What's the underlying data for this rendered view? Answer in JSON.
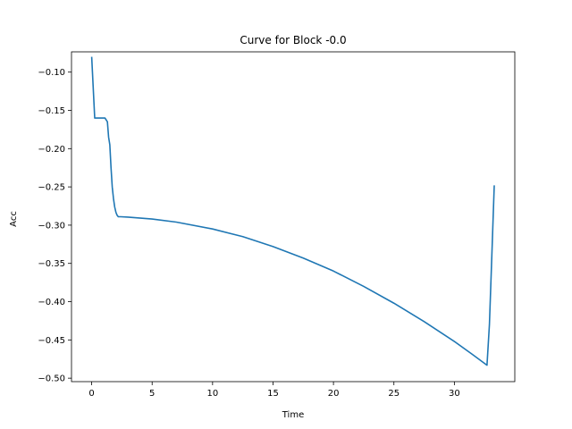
{
  "chart_data": {
    "type": "line",
    "title": "Curve for Block -0.0",
    "xlabel": "Time",
    "ylabel": "Acc",
    "xlim": [
      -1.67,
      35.0
    ],
    "ylim": [
      -0.5045,
      -0.0735
    ],
    "x_ticks": [
      0,
      5,
      10,
      15,
      20,
      25,
      30
    ],
    "y_ticks": [
      -0.1,
      -0.15,
      -0.2,
      -0.25,
      -0.3,
      -0.35,
      -0.4,
      -0.45,
      -0.5
    ],
    "x_tick_labels": [
      "0",
      "5",
      "10",
      "15",
      "20",
      "25",
      "30"
    ],
    "y_tick_labels": [
      "−0.10",
      "−0.15",
      "−0.20",
      "−0.25",
      "−0.30",
      "−0.35",
      "−0.40",
      "−0.45",
      "−0.50"
    ],
    "grid": false,
    "legend": "none",
    "series": [
      {
        "color": "#1f77b4",
        "x": [
          0.0,
          0.25,
          0.5,
          0.8,
          1.1,
          1.3,
          1.4,
          1.5,
          1.6,
          1.7,
          1.8,
          1.9,
          2.0,
          2.1,
          2.2,
          2.4,
          3.0,
          5.0,
          7.0,
          10.0,
          12.5,
          15.0,
          17.5,
          20.0,
          22.5,
          25.0,
          27.5,
          30.0,
          31.5,
          32.7,
          32.9,
          33.1,
          33.3
        ],
        "y": [
          -0.08,
          -0.16,
          -0.16,
          -0.16,
          -0.16,
          -0.165,
          -0.185,
          -0.195,
          -0.225,
          -0.25,
          -0.265,
          -0.276,
          -0.283,
          -0.287,
          -0.289,
          -0.289,
          -0.2895,
          -0.292,
          -0.296,
          -0.305,
          -0.315,
          -0.328,
          -0.343,
          -0.36,
          -0.38,
          -0.402,
          -0.426,
          -0.452,
          -0.469,
          -0.483,
          -0.43,
          -0.34,
          -0.248
        ]
      }
    ]
  }
}
